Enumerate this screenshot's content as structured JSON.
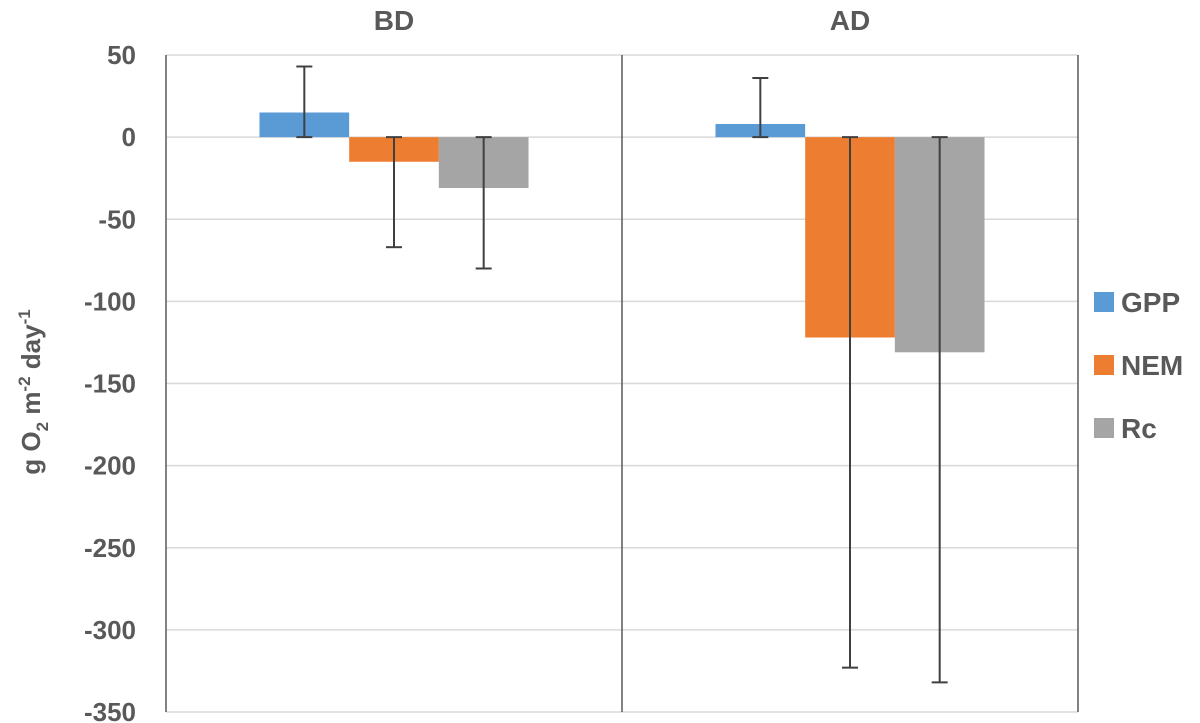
{
  "chart_data": {
    "type": "bar",
    "title": "",
    "categories": [
      "BD",
      "AD"
    ],
    "ylabel": {
      "base": "g O",
      "sub": "2",
      "mid1": " m",
      "sup1": "-2",
      "mid2": " day",
      "sup2": "-1"
    },
    "xlabel": "",
    "ylim": [
      -350,
      50
    ],
    "ytick_step": 50,
    "yticks": [
      "50",
      "0",
      "-50",
      "-100",
      "-150",
      "-200",
      "-250",
      "-300",
      "-350"
    ],
    "grid": true,
    "legend_position": "right",
    "series": [
      {
        "name": "GPP",
        "color": "#5b9bd5",
        "values": [
          15,
          8
        ],
        "error_up": [
          28,
          28
        ],
        "error_down": [
          15,
          8
        ]
      },
      {
        "name": "NEM",
        "color": "#ed7d31",
        "values": [
          -15,
          -122
        ],
        "error_up": [
          15,
          122
        ],
        "error_down": [
          52,
          201
        ]
      },
      {
        "name": "Rc",
        "color": "#a5a5a5",
        "values": [
          -31,
          -131
        ],
        "error_up": [
          31,
          131
        ],
        "error_down": [
          49,
          201
        ]
      }
    ]
  }
}
